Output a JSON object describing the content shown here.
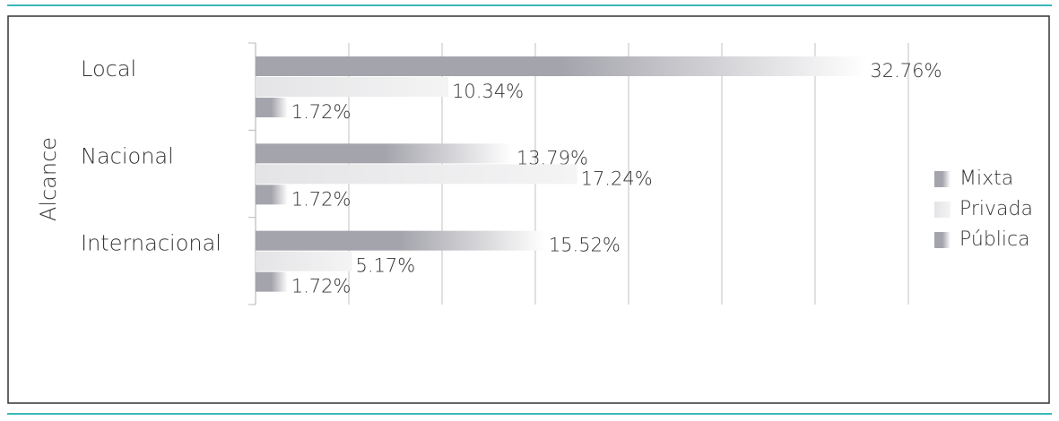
{
  "chart_data": {
    "type": "hbar",
    "y_label": "Alcance",
    "categories": [
      "Local",
      "Nacional",
      "Internacional"
    ],
    "series": [
      {
        "name": "Mixta",
        "color": "#a4a4ac",
        "values": [
          32.76,
          13.79,
          15.52
        ],
        "value_labels": [
          "32.76%",
          "13.79%",
          "15.52%"
        ]
      },
      {
        "name": "Privada",
        "color": "#e4e4e6",
        "values": [
          10.34,
          17.24,
          5.17
        ],
        "value_labels": [
          "10.34%",
          "17.24%",
          "5.17%"
        ]
      },
      {
        "name": "Pública",
        "color": "#a4a4ac",
        "values": [
          1.72,
          1.72,
          1.72
        ],
        "value_labels": [
          "1.72%",
          "1.72%",
          "1.72%"
        ]
      }
    ],
    "xlim": [
      0,
      35
    ],
    "xticks": [
      0,
      5,
      10,
      15,
      20,
      25,
      30,
      35
    ],
    "grid": true,
    "legend": "right"
  }
}
